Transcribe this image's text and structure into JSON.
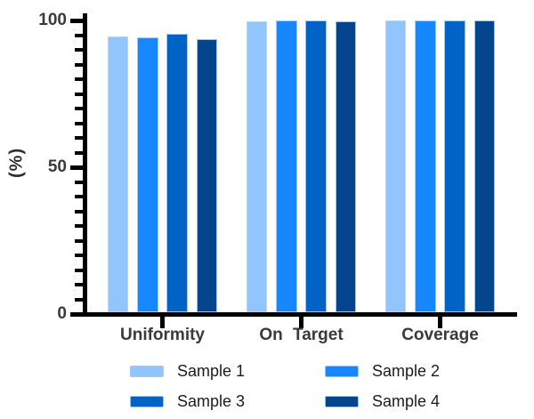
{
  "chart_data": {
    "type": "bar",
    "title": "",
    "xlabel": "",
    "ylabel": "(%)",
    "ylim": [
      0,
      100
    ],
    "yticks_major": [
      0,
      50,
      100
    ],
    "ytick_minor_step": 5,
    "grid": false,
    "legend_position": "bottom-two-columns",
    "categories": [
      "Uniformity",
      "On Target",
      "Coverage"
    ],
    "series": [
      {
        "name": "Sample 1",
        "color": "#92C5FB",
        "values": [
          94.0,
          99.2,
          99.5
        ]
      },
      {
        "name": "Sample 2",
        "color": "#1787FD",
        "values": [
          93.5,
          99.4,
          99.5
        ]
      },
      {
        "name": "Sample 3",
        "color": "#0263C7",
        "values": [
          95.0,
          99.4,
          99.5
        ]
      },
      {
        "name": "Sample 4",
        "color": "#04458D",
        "values": [
          93.0,
          99.2,
          99.4
        ]
      }
    ]
  },
  "colors": {
    "axis": "#000000",
    "tick_label": "#3a3a3a",
    "category_label": "#3a3a3a",
    "legend_label": "#1c1c1c",
    "background": "#ffffff"
  }
}
